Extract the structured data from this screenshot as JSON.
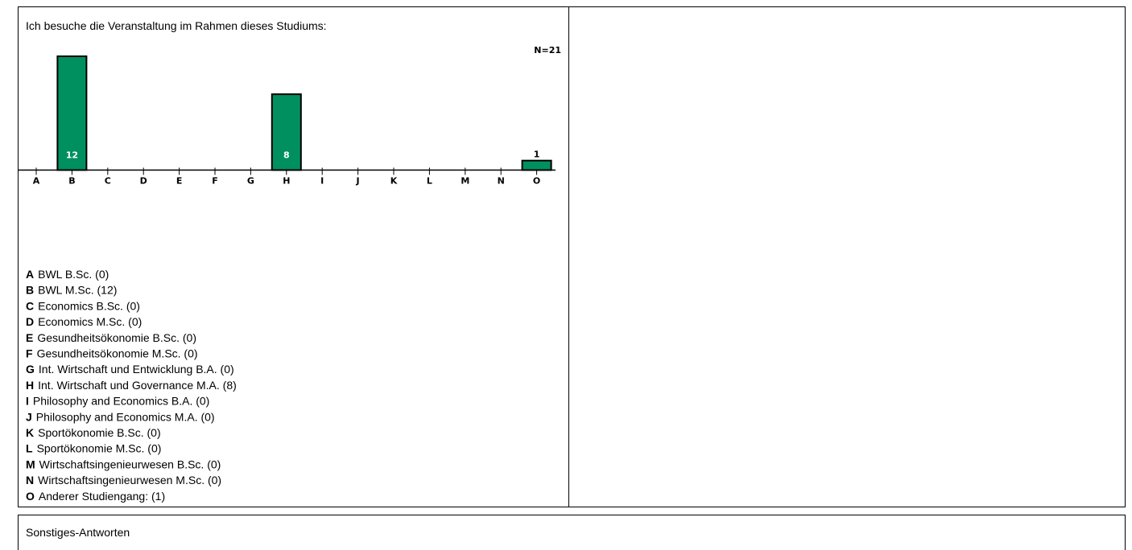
{
  "chart_data": {
    "type": "bar",
    "title": "Ich besuche die Veranstaltung im Rahmen dieses Studiums:",
    "n_label": "N=21",
    "categories": [
      "A",
      "B",
      "C",
      "D",
      "E",
      "F",
      "G",
      "H",
      "I",
      "J",
      "K",
      "L",
      "M",
      "N",
      "O"
    ],
    "values": [
      0,
      12,
      0,
      0,
      0,
      0,
      0,
      8,
      0,
      0,
      0,
      0,
      0,
      0,
      1
    ],
    "color": "#009060",
    "descriptions": [
      "BWL B.Sc. (0)",
      "BWL M.Sc. (12)",
      "Economics B.Sc. (0)",
      "Economics M.Sc. (0)",
      "Gesundheitsökonomie B.Sc. (0)",
      "Gesundheitsökonomie M.Sc. (0)",
      "Int. Wirtschaft und Entwicklung B.A. (0)",
      "Int. Wirtschaft und Governance M.A. (8)",
      "Philosophy and Economics B.A. (0)",
      "Philosophy and Economics M.A. (0)",
      "Sportökonomie B.Sc. (0)",
      "Sportökonomie M.Sc. (0)",
      "Wirtschaftsingenieurwesen B.Sc. (0)",
      "Wirtschaftsingenieurwesen M.Sc. (0)",
      "Anderer Studiengang: (1)"
    ]
  },
  "other_section": {
    "title": "Sonstiges-Antworten"
  }
}
